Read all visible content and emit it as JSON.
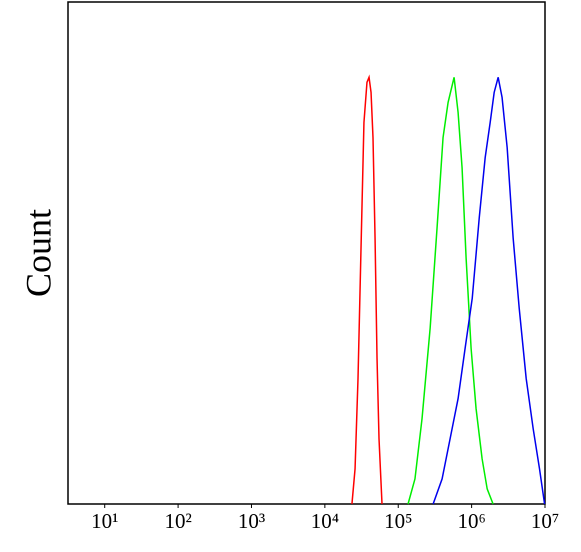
{
  "chart_data": {
    "type": "line",
    "ylabel": "Count",
    "xscale": "log",
    "xlim": [
      3.16,
      10000000
    ],
    "ylim": [
      0,
      100
    ],
    "xticks": [
      {
        "value": 10,
        "label": "10¹"
      },
      {
        "value": 100,
        "label": "10²"
      },
      {
        "value": 1000,
        "label": "10³"
      },
      {
        "value": 10000,
        "label": "10⁴"
      },
      {
        "value": 100000,
        "label": "10⁵"
      },
      {
        "value": 1000000,
        "label": "10⁶"
      },
      {
        "value": 10000000,
        "label": "10⁷"
      }
    ],
    "grid": false,
    "series": [
      {
        "color": "#ff0000",
        "x": [
          23400,
          25800,
          28300,
          31100,
          34100,
          37500,
          40000,
          42600,
          45300,
          48300,
          51400,
          54700,
          60100
        ],
        "values": [
          0,
          7,
          25,
          51,
          76,
          84,
          85,
          82,
          73,
          53,
          29,
          13,
          0
        ]
      },
      {
        "color": "#00ee00",
        "x": [
          136000,
          169000,
          211000,
          272000,
          338000,
          408000,
          478000,
          577000,
          654000,
          741000,
          841000,
          984000,
          1150000,
          1390000,
          1630000,
          1960000
        ],
        "values": [
          0,
          5,
          17,
          35,
          55,
          73,
          80,
          85,
          78,
          67,
          49,
          31,
          19,
          9,
          3,
          0
        ]
      },
      {
        "color": "#0000ee",
        "x": [
          299000,
          396000,
          509000,
          654000,
          815000,
          1020000,
          1270000,
          1530000,
          1790000,
          2030000,
          2300000,
          2600000,
          3050000,
          3680000,
          4450000,
          5540000,
          6900000,
          8420000,
          9870000
        ],
        "values": [
          0,
          5,
          13,
          21,
          31,
          41,
          57,
          69,
          76,
          82,
          85,
          81,
          71,
          53,
          39,
          25,
          15,
          7,
          0
        ]
      }
    ]
  }
}
